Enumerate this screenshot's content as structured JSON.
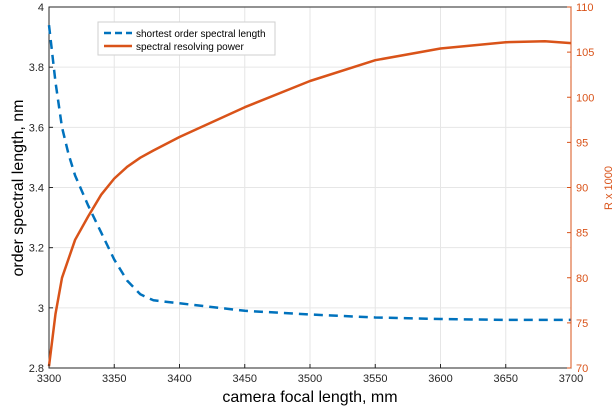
{
  "chart_data": {
    "type": "line",
    "xlabel": "camera focal length, mm",
    "ylabel_left": "order spectral length, nm",
    "ylabel_right": "R x 1000",
    "xlim": [
      3300,
      3700
    ],
    "ylim_left": [
      2.8,
      4.0
    ],
    "ylim_right": [
      70,
      110
    ],
    "x_ticks": [
      3300,
      3350,
      3400,
      3450,
      3500,
      3550,
      3600,
      3650,
      3700
    ],
    "y_left_ticks": [
      "2.8",
      "3",
      "3.2",
      "3.4",
      "3.6",
      "3.8",
      "4"
    ],
    "y_right_ticks": [
      "70",
      "75",
      "80",
      "85",
      "90",
      "95",
      "100",
      "105",
      "110"
    ],
    "grid": true,
    "legend_position": "top-left",
    "colors": {
      "left_axis": "#000000",
      "right_axis": "#d95319",
      "series_1": "#0072bd",
      "series_2": "#d95319",
      "grid": "#e6e6e6"
    },
    "series": [
      {
        "name": "shortest order spectral length",
        "axis": "left",
        "style": "dashed",
        "color": "#0072bd",
        "x": [
          3300,
          3305,
          3310,
          3315,
          3320,
          3330,
          3340,
          3350,
          3360,
          3370,
          3380,
          3400,
          3450,
          3500,
          3550,
          3600,
          3650,
          3700
        ],
        "y": [
          3.94,
          3.75,
          3.6,
          3.51,
          3.44,
          3.34,
          3.25,
          3.16,
          3.09,
          3.045,
          3.025,
          3.015,
          2.99,
          2.978,
          2.968,
          2.963,
          2.96,
          2.96
        ]
      },
      {
        "name": "spectral resolving power",
        "axis": "right",
        "style": "solid",
        "color": "#d95319",
        "x": [
          3300,
          3305,
          3310,
          3320,
          3330,
          3340,
          3350,
          3360,
          3370,
          3380,
          3400,
          3450,
          3500,
          3550,
          3600,
          3650,
          3680,
          3700
        ],
        "y": [
          70.2,
          76,
          80,
          84.2,
          86.8,
          89.2,
          91,
          92.3,
          93.3,
          94.1,
          95.6,
          98.9,
          101.8,
          104.1,
          105.4,
          106.1,
          106.2,
          106
        ]
      }
    ]
  }
}
